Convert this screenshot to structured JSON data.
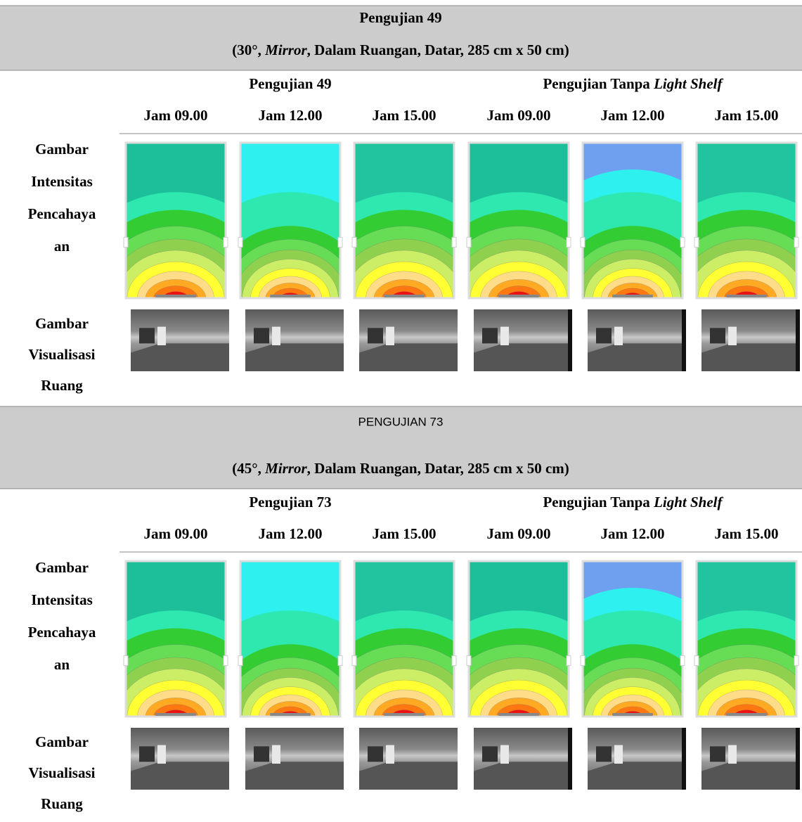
{
  "sections": [
    {
      "title": "Pengujian 49",
      "subtitle": [
        "(30°, ",
        "Mirror",
        ", Dalam Ruangan, Datar, 285 cm x 50 cm)"
      ],
      "groups": [
        [
          "Pengujian 49"
        ],
        [
          "Pengujian Tanpa ",
          "Light Shelf"
        ]
      ],
      "times": [
        "Jam 09.00",
        "Jam 12.00",
        "Jam 15.00",
        "Jam 09.00",
        "Jam 12.00",
        "Jam 15.00"
      ],
      "rows": [
        [
          "Gambar",
          "Intensitas",
          "Pencahaya",
          "an"
        ],
        [
          "Gambar",
          "Visualisasi",
          "Ruang"
        ]
      ]
    },
    {
      "title": "PENGUJIAN 73",
      "subtitle": [
        "(45°, ",
        "Mirror",
        ", Dalam Ruangan, Datar, 285 cm x 50 cm)"
      ],
      "groups": [
        [
          "Pengujian 73"
        ],
        [
          "Pengujian Tanpa ",
          "Light Shelf"
        ]
      ],
      "times": [
        "Jam 09.00",
        "Jam 12.00",
        "Jam 15.00",
        "Jam 09.00",
        "Jam 12.00",
        "Jam 15.00"
      ],
      "rows": [
        [
          "Gambar",
          "Intensitas",
          "Pencahaya",
          "an"
        ],
        [
          "Gambar",
          "Visualisasi",
          "Ruang"
        ]
      ]
    }
  ]
}
